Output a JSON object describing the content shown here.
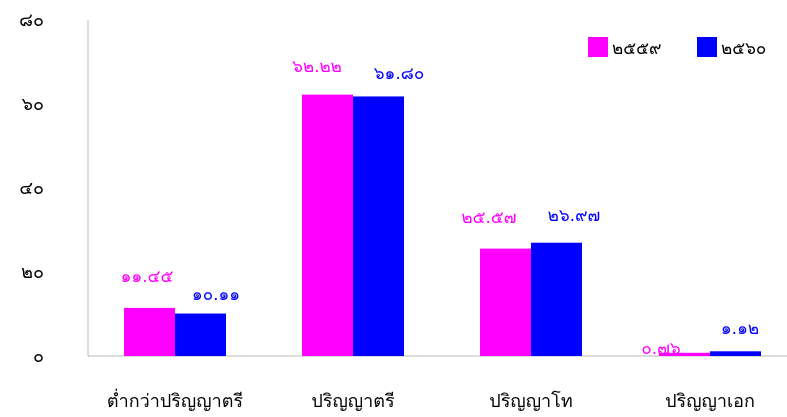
{
  "chart_data": {
    "type": "bar",
    "categories": [
      "ต่ำกว่าปริญญาตรี",
      "ปริญญาตรี",
      "ปริญญาโท",
      "ปริญญาเอก"
    ],
    "series": [
      {
        "name": "๒๕๕๙",
        "color": "#ff00ff",
        "values": [
          11.45,
          62.22,
          25.57,
          0.76
        ],
        "value_labels": [
          "๑๑.๔๕",
          "๖๒.๒๒",
          "๒๕.๕๗",
          "๐.๗๖"
        ]
      },
      {
        "name": "๒๕๖๐",
        "color": "#0000ff",
        "values": [
          10.11,
          61.8,
          26.97,
          1.12
        ],
        "value_labels": [
          "๑๐.๑๑",
          "๖๑.๘๐",
          "๒๖.๙๗",
          "๑.๑๒"
        ]
      }
    ],
    "ylim": [
      0,
      80
    ],
    "yticks": [
      0,
      20,
      40,
      60,
      80
    ],
    "ytick_labels": [
      "๐",
      "๒๐",
      "๔๐",
      "๖๐",
      "๘๐"
    ],
    "grid": false,
    "legend_position": "top-right"
  }
}
